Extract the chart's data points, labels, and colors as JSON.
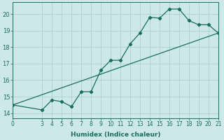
{
  "xlabel": "Humidex (Indice chaleur)",
  "ylabel": "",
  "background_color": "#cce8e8",
  "line_color": "#1a6e5e",
  "grid_color": "#aacccc",
  "xlim": [
    0,
    21
  ],
  "ylim": [
    13.7,
    20.7
  ],
  "xticks": [
    0,
    3,
    4,
    5,
    6,
    7,
    8,
    9,
    10,
    11,
    12,
    13,
    14,
    15,
    16,
    17,
    18,
    19,
    20,
    21
  ],
  "yticks": [
    14,
    15,
    16,
    17,
    18,
    19,
    20
  ],
  "curve1_x": [
    0,
    3,
    4,
    5,
    6,
    7,
    8,
    9,
    10,
    11,
    12,
    13,
    14,
    15,
    16,
    17,
    18,
    19,
    20,
    21
  ],
  "curve1_y": [
    14.5,
    14.2,
    14.8,
    14.7,
    14.4,
    15.3,
    15.3,
    16.6,
    17.2,
    17.2,
    18.2,
    18.85,
    19.8,
    19.75,
    20.3,
    20.3,
    19.6,
    19.35,
    19.35,
    18.85
  ],
  "line2_x": [
    0,
    21
  ],
  "line2_y": [
    14.5,
    18.85
  ],
  "tick_fontsize": 5.5,
  "xlabel_fontsize": 6.5
}
